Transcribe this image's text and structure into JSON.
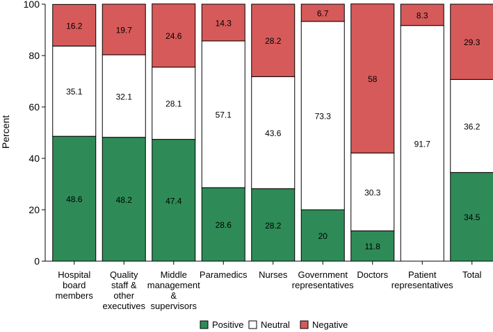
{
  "chart_data": {
    "type": "bar",
    "stacked": true,
    "ylabel": "Percent",
    "ylim": [
      0,
      100
    ],
    "yticks": [
      "0",
      "20",
      "40",
      "60",
      "80",
      "100"
    ],
    "categories": [
      {
        "label_lines": [
          "Hospital",
          "board",
          "members"
        ]
      },
      {
        "label_lines": [
          "Quality",
          "staff &",
          "other",
          "executives"
        ]
      },
      {
        "label_lines": [
          "Middle",
          "management",
          "&",
          "supervisors"
        ]
      },
      {
        "label_lines": [
          "Paramedics"
        ]
      },
      {
        "label_lines": [
          "Nurses"
        ]
      },
      {
        "label_lines": [
          "Government",
          "representatives"
        ]
      },
      {
        "label_lines": [
          "Doctors"
        ]
      },
      {
        "label_lines": [
          "Patient",
          "representatives"
        ]
      },
      {
        "label_lines": [
          "Total"
        ]
      }
    ],
    "series": [
      {
        "name": "Positive",
        "color": "#2e8b57",
        "values": [
          48.6,
          48.2,
          47.4,
          28.6,
          28.2,
          20,
          11.8,
          0,
          34.5
        ],
        "labels": [
          "48.6",
          "48.2",
          "47.4",
          "28.6",
          "28.2",
          "20",
          "11.8",
          "",
          "34.5"
        ]
      },
      {
        "name": "Neutral",
        "color": "#ffffff",
        "values": [
          35.1,
          32.1,
          28.1,
          57.1,
          43.6,
          73.3,
          30.3,
          91.7,
          36.2
        ],
        "labels": [
          "35.1",
          "32.1",
          "28.1",
          "57.1",
          "43.6",
          "73.3",
          "30.3",
          "91.7",
          "36.2"
        ]
      },
      {
        "name": "Negative",
        "color": "#d65a5a",
        "values": [
          16.2,
          19.7,
          24.6,
          14.3,
          28.2,
          6.7,
          58,
          8.3,
          29.3
        ],
        "labels": [
          "16.2",
          "19.7",
          "24.6",
          "14.3",
          "28.2",
          "6.7",
          "58",
          "8.3",
          "29.3"
        ]
      }
    ],
    "legend": {
      "position": "bottom"
    }
  }
}
